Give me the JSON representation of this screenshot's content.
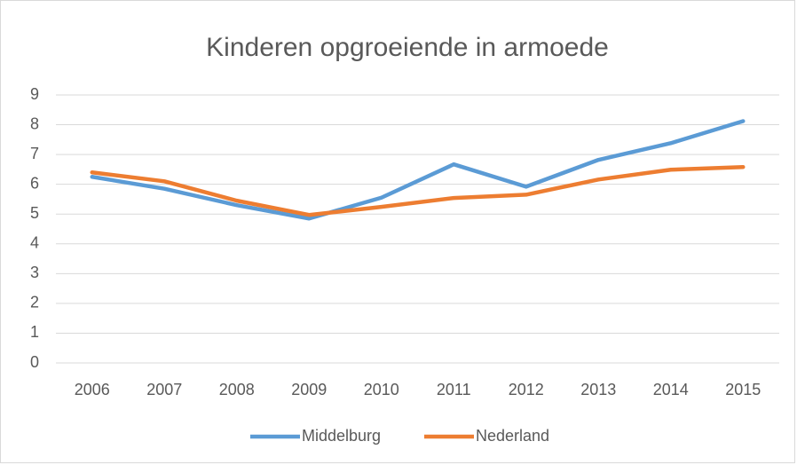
{
  "chart_data": {
    "type": "line",
    "title": "Kinderen opgroeiende in armoede",
    "categories": [
      "2006",
      "2007",
      "2008",
      "2009",
      "2010",
      "2011",
      "2012",
      "2013",
      "2014",
      "2015"
    ],
    "series": [
      {
        "name": "Middelburg",
        "color": "#5b9bd5",
        "values": [
          6.25,
          5.85,
          5.3,
          4.85,
          5.55,
          6.67,
          5.92,
          6.82,
          7.38,
          8.12
        ]
      },
      {
        "name": "Nederland",
        "color": "#ed7d31",
        "values": [
          6.4,
          6.1,
          5.45,
          4.97,
          5.24,
          5.54,
          5.65,
          6.16,
          6.49,
          6.58
        ]
      }
    ],
    "ylim": [
      0,
      9
    ],
    "yticks": [
      0,
      1,
      2,
      3,
      4,
      5,
      6,
      7,
      8,
      9
    ],
    "grid": true,
    "legend": "bottom"
  }
}
